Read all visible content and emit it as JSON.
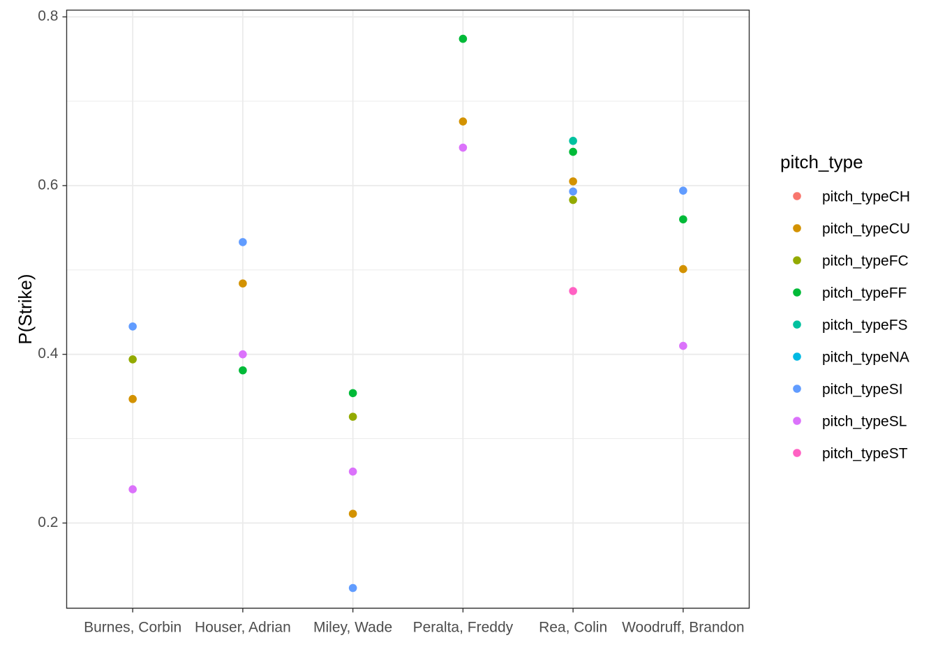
{
  "chart_data": {
    "type": "scatter",
    "title": "",
    "xlabel": "",
    "ylabel": "P(Strike)",
    "categories": [
      "Burnes, Corbin",
      "Houser, Adrian",
      "Miley, Wade",
      "Peralta, Freddy",
      "Rea, Colin",
      "Woodruff, Brandon"
    ],
    "ylim": [
      0.099,
      0.808
    ],
    "yticks": [
      0.2,
      0.4,
      0.6,
      0.8
    ],
    "ytick_labels": [
      "0.2",
      "0.4",
      "0.6",
      "0.8"
    ],
    "grid": true,
    "legend": {
      "title": "pitch_type",
      "position": "right"
    },
    "series": [
      {
        "name": "pitch_typeCH",
        "color": "#F8766D",
        "points": []
      },
      {
        "name": "pitch_typeCU",
        "color": "#D39200",
        "points": [
          {
            "x": "Burnes, Corbin",
            "y": 0.347
          },
          {
            "x": "Houser, Adrian",
            "y": 0.484
          },
          {
            "x": "Miley, Wade",
            "y": 0.211
          },
          {
            "x": "Peralta, Freddy",
            "y": 0.676
          },
          {
            "x": "Rea, Colin",
            "y": 0.605
          },
          {
            "x": "Woodruff, Brandon",
            "y": 0.501
          }
        ]
      },
      {
        "name": "pitch_typeFC",
        "color": "#93AA00",
        "points": [
          {
            "x": "Burnes, Corbin",
            "y": 0.394
          },
          {
            "x": "Miley, Wade",
            "y": 0.326
          },
          {
            "x": "Rea, Colin",
            "y": 0.583
          }
        ]
      },
      {
        "name": "pitch_typeFF",
        "color": "#00BA38",
        "points": [
          {
            "x": "Houser, Adrian",
            "y": 0.381
          },
          {
            "x": "Miley, Wade",
            "y": 0.354
          },
          {
            "x": "Peralta, Freddy",
            "y": 0.774
          },
          {
            "x": "Rea, Colin",
            "y": 0.64
          },
          {
            "x": "Woodruff, Brandon",
            "y": 0.56
          }
        ]
      },
      {
        "name": "pitch_typeFS",
        "color": "#00C19F",
        "points": [
          {
            "x": "Rea, Colin",
            "y": 0.653
          }
        ]
      },
      {
        "name": "pitch_typeNA",
        "color": "#00B9E3",
        "points": []
      },
      {
        "name": "pitch_typeSI",
        "color": "#619CFF",
        "points": [
          {
            "x": "Burnes, Corbin",
            "y": 0.433
          },
          {
            "x": "Houser, Adrian",
            "y": 0.533
          },
          {
            "x": "Miley, Wade",
            "y": 0.123
          },
          {
            "x": "Rea, Colin",
            "y": 0.593
          },
          {
            "x": "Woodruff, Brandon",
            "y": 0.594
          }
        ]
      },
      {
        "name": "pitch_typeSL",
        "color": "#DB72FB",
        "points": [
          {
            "x": "Burnes, Corbin",
            "y": 0.24
          },
          {
            "x": "Houser, Adrian",
            "y": 0.4
          },
          {
            "x": "Miley, Wade",
            "y": 0.261
          },
          {
            "x": "Peralta, Freddy",
            "y": 0.645
          },
          {
            "x": "Woodruff, Brandon",
            "y": 0.41
          }
        ]
      },
      {
        "name": "pitch_typeST",
        "color": "#FF61C3",
        "points": [
          {
            "x": "Rea, Colin",
            "y": 0.475
          }
        ]
      }
    ]
  }
}
